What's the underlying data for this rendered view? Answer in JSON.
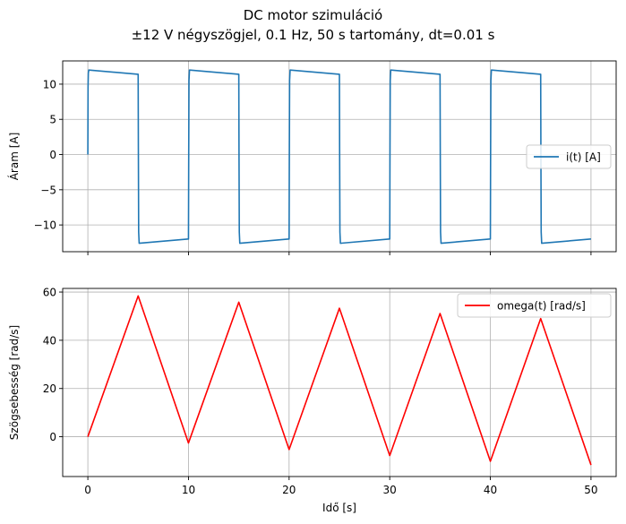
{
  "figure": {
    "title_line1": "DC motor szimuláció",
    "title_line2": "±12 V négyszögjel, 0.1 Hz, 50 s tartomány, dt=0.01 s"
  },
  "chart_data": [
    {
      "type": "line",
      "ylabel": "Áram [A]",
      "xlabel": "",
      "xlim": [
        -2.5,
        52.5
      ],
      "ylim": [
        -13.8,
        13.3
      ],
      "xticks": [
        0,
        10,
        20,
        30,
        40,
        50
      ],
      "yticks": [
        -10,
        -5,
        0,
        5,
        10
      ],
      "ytick_labels": [
        "−10",
        "−5",
        "0",
        "5",
        "10"
      ],
      "grid": true,
      "legend_position": "center-right",
      "series": [
        {
          "name": "i(t) [A]",
          "color": "#1f77b4",
          "x": [
            0,
            0.02,
            0.05,
            0.1,
            5,
            5.02,
            5.05,
            5.1,
            10,
            10.02,
            10.05,
            10.1,
            15,
            15.02,
            15.05,
            15.1,
            20,
            20.02,
            20.05,
            20.1,
            25,
            25.02,
            25.05,
            25.1,
            30,
            30.02,
            30.05,
            30.1,
            35,
            35.02,
            35.05,
            35.1,
            40,
            40.02,
            40.05,
            40.1,
            45,
            45.02,
            45.05,
            45.1,
            50
          ],
          "y": [
            0,
            9.5,
            11.6,
            12.0,
            11.4,
            1.0,
            -11.0,
            -12.6,
            -12.0,
            -2.0,
            10.5,
            12.0,
            11.4,
            1.0,
            -11.0,
            -12.6,
            -12.0,
            -2.0,
            10.5,
            12.0,
            11.4,
            1.0,
            -11.0,
            -12.6,
            -12.0,
            -2.0,
            10.5,
            12.0,
            11.4,
            1.0,
            -11.0,
            -12.6,
            -12.0,
            -2.0,
            10.5,
            12.0,
            11.4,
            1.0,
            -11.0,
            -12.6,
            -12.0
          ]
        }
      ]
    },
    {
      "type": "line",
      "ylabel": "Szögsebesség [rad/s]",
      "xlabel": "Idő [s]",
      "xlim": [
        -2.5,
        52.5
      ],
      "ylim": [
        -16.5,
        61.5
      ],
      "xticks": [
        0,
        10,
        20,
        30,
        40,
        50
      ],
      "yticks": [
        0,
        20,
        40,
        60
      ],
      "ytick_labels": [
        "0",
        "20",
        "40",
        "60"
      ],
      "grid": true,
      "legend_position": "top-right",
      "series": [
        {
          "name": "omega(t) [rad/s]",
          "color": "#ff0000",
          "x": [
            0,
            5,
            10,
            15,
            20,
            25,
            30,
            35,
            40,
            45,
            50
          ],
          "y": [
            0,
            58.4,
            -2.6,
            55.8,
            -5.3,
            53.3,
            -7.8,
            51.1,
            -10.2,
            49.0,
            -11.7
          ]
        }
      ]
    }
  ]
}
